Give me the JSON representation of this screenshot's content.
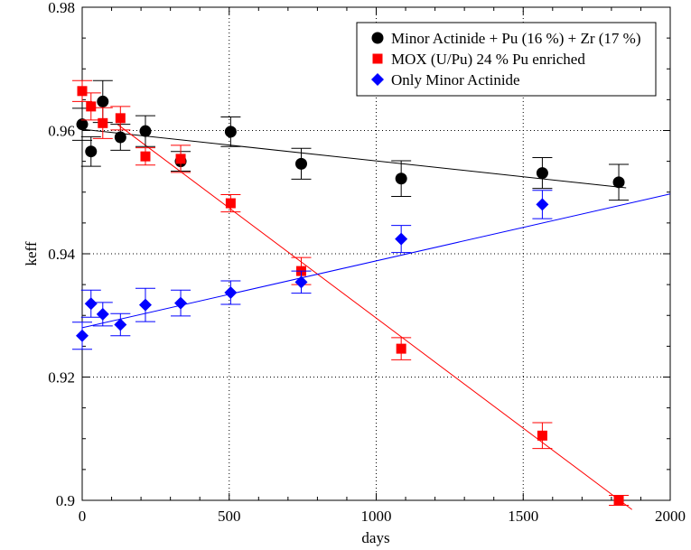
{
  "chart_data": {
    "type": "scatter",
    "xlabel": "days",
    "ylabel": "keff",
    "xlim": [
      0,
      2000
    ],
    "ylim": [
      0.9,
      0.98
    ],
    "x_ticks": [
      0,
      500,
      1000,
      1500,
      2000
    ],
    "y_ticks": [
      0.9,
      0.92,
      0.94,
      0.96,
      0.98
    ],
    "x_tick_labels": [
      "0",
      "500",
      "1000",
      "1500",
      "2000"
    ],
    "y_tick_labels": [
      "0.9",
      "0.92",
      "0.94",
      "0.96",
      "0.98"
    ],
    "grid": true,
    "grid_style": "dotted",
    "legend_position": "top-right",
    "series": [
      {
        "name": "Minor Actinide + Pu (16 %) + Zr (17 %)",
        "color": "#000000",
        "marker": "circle",
        "x": [
          0,
          30,
          70,
          130,
          215,
          335,
          505,
          745,
          1085,
          1565,
          1825
        ],
        "y": [
          0.961,
          0.9566,
          0.9647,
          0.9589,
          0.9599,
          0.955,
          0.9598,
          0.9546,
          0.9522,
          0.9531,
          0.9516
        ],
        "yerr": [
          0.0026,
          0.0024,
          0.0034,
          0.0021,
          0.0025,
          0.0016,
          0.0024,
          0.0025,
          0.0029,
          0.0025,
          0.0029
        ],
        "fit": [
          [
            0,
            0.9602
          ],
          [
            1850,
            0.9507
          ]
        ]
      },
      {
        "name": "MOX (U/Pu) 24 % Pu enriched",
        "color": "#ff0000",
        "marker": "square",
        "x": [
          0,
          30,
          70,
          130,
          215,
          335,
          505,
          745,
          1085,
          1565,
          1825
        ],
        "y": [
          0.9664,
          0.9639,
          0.9612,
          0.962,
          0.9558,
          0.9554,
          0.9482,
          0.9372,
          0.9246,
          0.9105,
          0.9
        ],
        "yerr": [
          0.0017,
          0.0022,
          0.0025,
          0.0019,
          0.0014,
          0.0022,
          0.0014,
          0.0022,
          0.0018,
          0.0021,
          0.0008
        ],
        "fit": [
          [
            120,
            0.961
          ],
          [
            1870,
            0.8985
          ]
        ]
      },
      {
        "name": "Only Minor Actinide",
        "color": "#0000ff",
        "marker": "diamond",
        "x": [
          0,
          30,
          70,
          130,
          215,
          335,
          505,
          745,
          1085,
          1565
        ],
        "y": [
          0.9267,
          0.9319,
          0.9302,
          0.9285,
          0.9317,
          0.932,
          0.9337,
          0.9354,
          0.9424,
          0.948
        ],
        "yerr": [
          0.0022,
          0.0022,
          0.0019,
          0.0018,
          0.0027,
          0.0021,
          0.0019,
          0.0018,
          0.0022,
          0.0023
        ],
        "fit": [
          [
            0,
            0.928
          ],
          [
            2000,
            0.9497
          ]
        ]
      }
    ]
  }
}
